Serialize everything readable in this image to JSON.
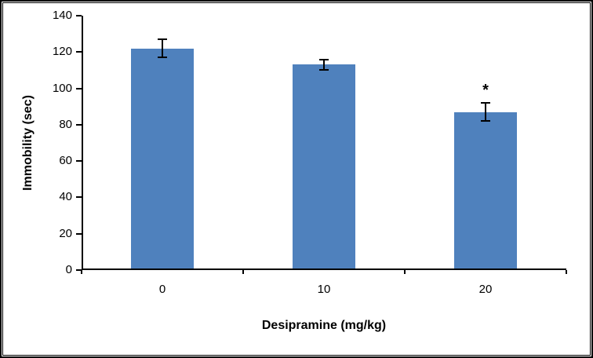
{
  "chart_data": {
    "type": "bar",
    "title": "",
    "categories": [
      "0",
      "10",
      "20"
    ],
    "values": [
      122,
      113,
      87
    ],
    "errors": [
      5,
      3,
      5
    ],
    "xlabel": "Desipramine (mg/kg)",
    "ylabel": "Immobility (sec)",
    "ylim": [
      0,
      140
    ],
    "ytick_step": 20,
    "grid": false,
    "legend_position": "none",
    "bar_color": "#4f81bd",
    "axis_color": "#000000",
    "annotations": [
      {
        "category_index": 2,
        "text": "*"
      }
    ]
  }
}
